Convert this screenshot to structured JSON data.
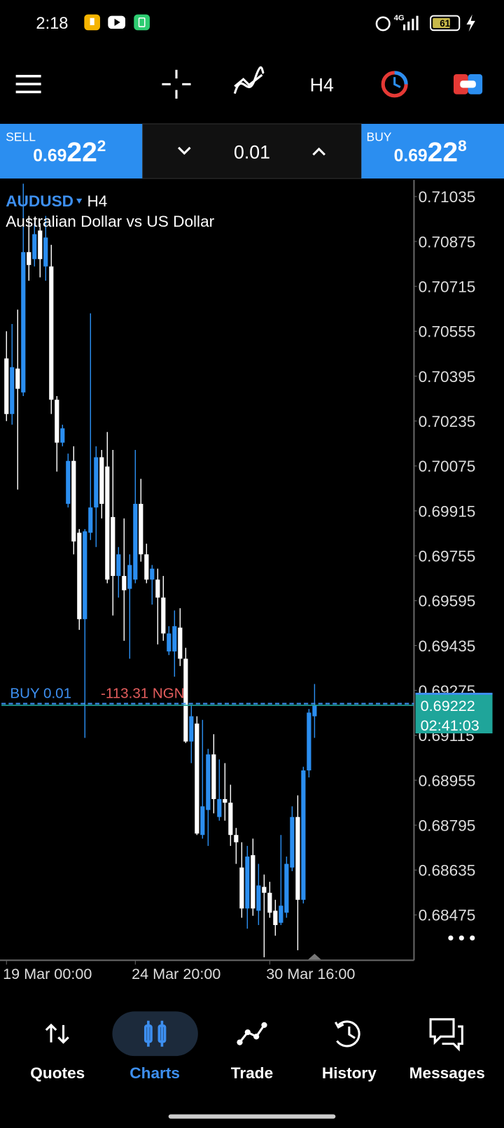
{
  "status_bar": {
    "time": "2:18",
    "network": "4G",
    "battery": "61"
  },
  "toolbar": {
    "timeframe": "H4"
  },
  "trade_panel": {
    "sell": {
      "label": "SELL",
      "price_prefix": "0.69",
      "price_big": "22",
      "price_small": "2"
    },
    "lot": "0.01",
    "buy": {
      "label": "BUY",
      "price_prefix": "0.69",
      "price_big": "22",
      "price_small": "8"
    }
  },
  "chart_data": {
    "type": "candlestick",
    "symbol": "AUDUSD",
    "timeframe": "H4",
    "description": "Australian Dollar vs US Dollar",
    "up_color": "#2b8ef0",
    "down_color": "#ffffff",
    "ylim": [
      0.68316,
      0.71089
    ],
    "yticks": [
      0.71035,
      0.70875,
      0.70715,
      0.70555,
      0.70395,
      0.70235,
      0.70075,
      0.69915,
      0.69755,
      0.69595,
      0.69435,
      0.69275,
      0.69115,
      0.68955,
      0.68795,
      0.68635,
      0.68475
    ],
    "grid": false,
    "categories": [
      "19 Mar 00:00",
      null,
      null,
      null,
      null,
      null,
      null,
      null,
      null,
      null,
      null,
      null,
      null,
      null,
      null,
      null,
      null,
      null,
      null,
      null,
      null,
      null,
      null,
      "24 Mar 20:00",
      null,
      null,
      null,
      null,
      null,
      null,
      null,
      null,
      null,
      null,
      null,
      null,
      null,
      null,
      null,
      null,
      null,
      null,
      null,
      null,
      null,
      null,
      null,
      "30 Mar 16:00",
      null,
      null,
      null,
      null,
      null,
      null,
      null,
      null
    ],
    "ohlc": [
      [
        0.70458,
        0.70555,
        0.70235,
        0.7026
      ],
      [
        0.7026,
        0.70581,
        0.70222,
        0.70427
      ],
      [
        0.70422,
        0.70632,
        0.69991,
        0.7035
      ],
      [
        0.70337,
        0.71081,
        0.70324,
        0.70837
      ],
      [
        0.70837,
        0.70966,
        0.70735,
        0.70791
      ],
      [
        0.70812,
        0.7094,
        0.70786,
        0.70901
      ],
      [
        0.70914,
        0.7094,
        0.70747,
        0.70812
      ],
      [
        0.70786,
        0.70966,
        0.70735,
        0.70889
      ],
      [
        0.70786,
        0.70863,
        0.7026,
        0.70311
      ],
      [
        0.70311,
        0.70324,
        0.70055,
        0.70158
      ],
      [
        0.70158,
        0.70222,
        0.70145,
        0.70209
      ],
      [
        0.6994,
        0.70119,
        0.69927,
        0.70093
      ],
      [
        0.70093,
        0.70145,
        0.6976,
        0.69806
      ],
      [
        0.69837,
        0.6985,
        0.69491,
        0.69529
      ],
      [
        0.69529,
        0.6985,
        0.69106,
        0.69842
      ],
      [
        0.69837,
        0.70619,
        0.69811,
        0.69927
      ],
      [
        0.69927,
        0.70145,
        0.69786,
        0.70106
      ],
      [
        0.70106,
        0.70132,
        0.69888,
        0.6994
      ],
      [
        0.70073,
        0.70196,
        0.69657,
        0.6967
      ],
      [
        0.69893,
        0.70132,
        0.69542,
        0.69683
      ],
      [
        0.69683,
        0.69786,
        0.69606,
        0.6976
      ],
      [
        0.69683,
        0.69888,
        0.69452,
        0.69632
      ],
      [
        0.69637,
        0.6976,
        0.69388,
        0.69722
      ],
      [
        0.6967,
        0.70132,
        0.69657,
        0.6994
      ],
      [
        0.6994,
        0.70029,
        0.69734,
        0.6976
      ],
      [
        0.6976,
        0.69798,
        0.69657,
        0.6967
      ],
      [
        0.6967,
        0.69722,
        0.69581,
        0.69709
      ],
      [
        0.6967,
        0.69709,
        0.69439,
        0.69606
      ],
      [
        0.69606,
        0.69683,
        0.69452,
        0.69478
      ],
      [
        0.69414,
        0.69504,
        0.69401,
        0.69478
      ],
      [
        0.69414,
        0.6956,
        0.69324,
        0.69504
      ],
      [
        0.69499,
        0.69568,
        0.69362,
        0.69388
      ],
      [
        0.69388,
        0.69427,
        0.69088,
        0.69093
      ],
      [
        0.69093,
        0.69222,
        0.69016,
        0.69183
      ],
      [
        0.69157,
        0.69183,
        0.6876,
        0.68765
      ],
      [
        0.6876,
        0.6917,
        0.68747,
        0.68862
      ],
      [
        0.68849,
        0.69067,
        0.68721,
        0.69047
      ],
      [
        0.69047,
        0.69119,
        0.68837,
        0.68888
      ],
      [
        0.68824,
        0.69029,
        0.68811,
        0.68888
      ],
      [
        0.68888,
        0.69016,
        0.68811,
        0.68875
      ],
      [
        0.68875,
        0.68939,
        0.68721,
        0.6876
      ],
      [
        0.6876,
        0.68785,
        0.68657,
        0.68734
      ],
      [
        0.68644,
        0.68734,
        0.68465,
        0.68498
      ],
      [
        0.68498,
        0.68721,
        0.68426,
        0.68683
      ],
      [
        0.68688,
        0.68747,
        0.68472,
        0.68498
      ],
      [
        0.6849,
        0.68657,
        0.68439,
        0.6858
      ],
      [
        0.68575,
        0.68619,
        0.68324,
        0.68554
      ],
      [
        0.68554,
        0.68593,
        0.68465,
        0.68483
      ],
      [
        0.6849,
        0.68529,
        0.68401,
        0.68439
      ],
      [
        0.68447,
        0.6876,
        0.68439,
        0.68508
      ],
      [
        0.68483,
        0.68683,
        0.68465,
        0.68657
      ],
      [
        0.68644,
        0.68862,
        0.68631,
        0.68824
      ],
      [
        0.68824,
        0.68901,
        0.68349,
        0.68529
      ],
      [
        0.68529,
        0.69003,
        0.68516,
        0.6899
      ],
      [
        0.6899,
        0.69209,
        0.68965,
        0.69196
      ],
      [
        0.69183,
        0.69298,
        0.69106,
        0.69222
      ]
    ],
    "order": {
      "label": "BUY 0.01",
      "profit": "-113.31 NGN",
      "price": 0.69228,
      "color": "#3d8ff0"
    },
    "current_price": 0.69222,
    "current_color": "#1fa59a",
    "countdown": "02:41:03"
  },
  "nav": {
    "items": [
      "Quotes",
      "Charts",
      "Trade",
      "History",
      "Messages"
    ],
    "active": "Charts"
  }
}
